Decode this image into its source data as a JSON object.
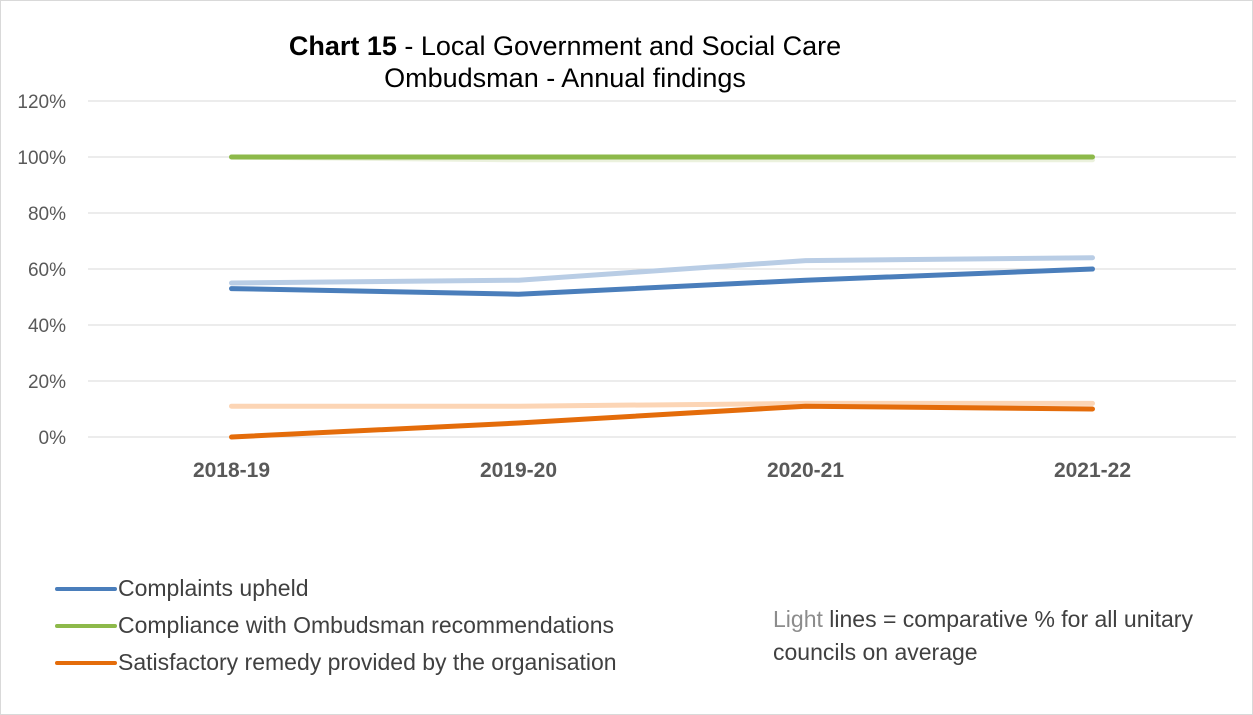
{
  "chart_data": {
    "type": "line",
    "title_bold": "Chart 15",
    "title_rest": " - Local Government and Social Care Ombudsman - Annual findings",
    "categories": [
      "2018-19",
      "2019-20",
      "2020-21",
      "2021-22"
    ],
    "yticks": [
      "0%",
      "20%",
      "40%",
      "60%",
      "80%",
      "100%",
      "120%"
    ],
    "ylim": [
      0,
      120
    ],
    "grid": true,
    "series": [
      {
        "name": "Complaints upheld",
        "values": [
          53,
          51,
          56,
          60
        ],
        "color": "#4a7ebb",
        "legend": true
      },
      {
        "values": [
          55,
          56,
          63,
          64
        ],
        "color": "#b9cde5",
        "legend": false
      },
      {
        "name": "Compliance with Ombudsman recommendations",
        "values": [
          100,
          100,
          100,
          100
        ],
        "color": "#8db94a",
        "legend": true
      },
      {
        "values": [
          100,
          99,
          99,
          99
        ],
        "color": "#ebf1dd",
        "legend": false
      },
      {
        "name": "Satisfactory remedy provided by the organisation",
        "values": [
          0,
          5,
          11,
          10
        ],
        "color": "#e46c0a",
        "legend": true
      },
      {
        "values": [
          11,
          11,
          12,
          12
        ],
        "color": "#fcd5b5",
        "legend": false
      }
    ],
    "legend_position": "bottom-left",
    "note_light_word": "Light",
    "note_rest": " lines = comparative % for all unitary councils on average"
  }
}
